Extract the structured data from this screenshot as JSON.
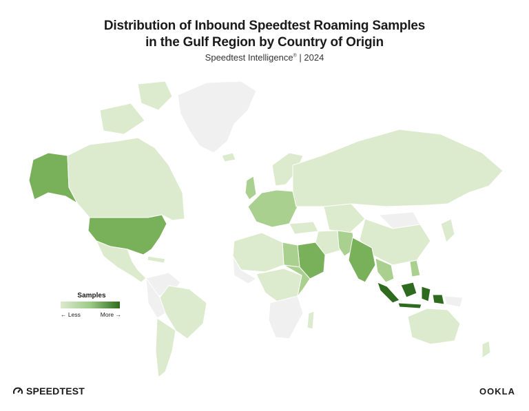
{
  "title_line1": "Distribution of Inbound Speedtest Roaming Samples",
  "title_line2": "in the Gulf Region by Country of Origin",
  "subtitle_main": "Speedtest Intelligence",
  "subtitle_mark": "®",
  "subtitle_year": "| 2024",
  "legend": {
    "title": "Samples",
    "less": "← Less",
    "more": "More →",
    "color_low": "#dde9cf",
    "color_high": "#2f6b1f"
  },
  "colors": {
    "no_data": "#f0f0f0",
    "low": "#dceacd",
    "medium": "#a9d08e",
    "high": "#79b05a",
    "very_high": "#2f6b1f"
  },
  "brand_left": "SPEEDTEST",
  "brand_right": "OOKLA",
  "icons": [
    "speedtest-gauge-icon"
  ]
}
